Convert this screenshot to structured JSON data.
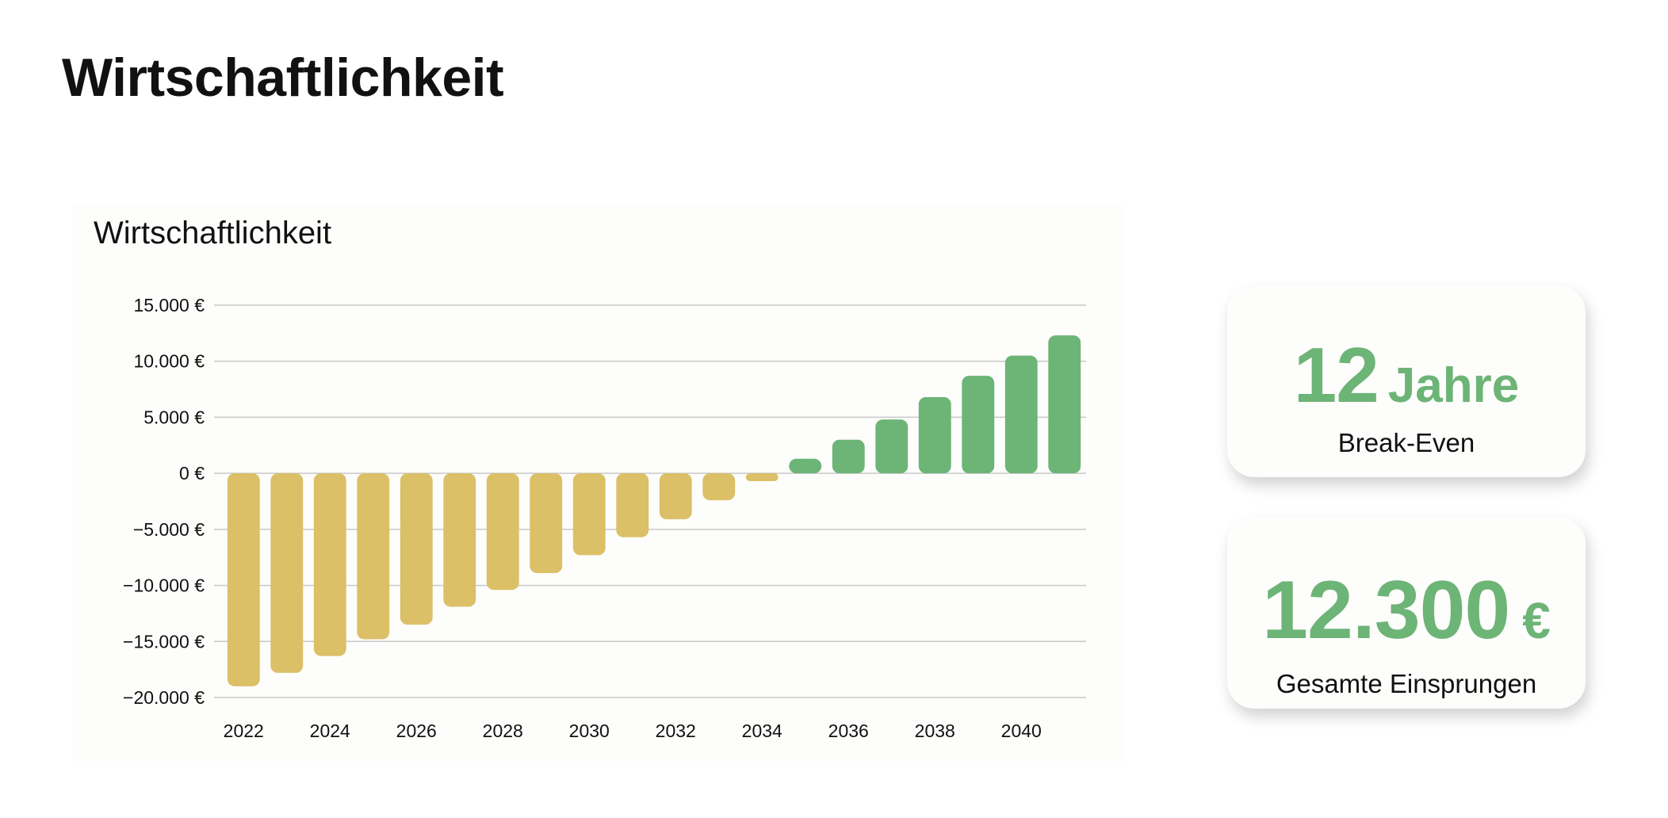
{
  "page": {
    "title": "Wirtschaftlichkeit"
  },
  "cards": [
    {
      "value": "12",
      "unit": "Jahre",
      "caption": "Break-Even"
    },
    {
      "value": "12.300",
      "unit": "€",
      "caption": "Gesamte Einsprungen"
    }
  ],
  "colors": {
    "negative": "#dbc068",
    "positive": "#6db477",
    "grid": "#c8c8c8"
  },
  "chart_data": {
    "type": "bar",
    "title": "Wirtschaftlichkeit",
    "xlabel": "",
    "ylabel": "",
    "x": [
      2022,
      2023,
      2024,
      2025,
      2026,
      2027,
      2028,
      2029,
      2030,
      2031,
      2032,
      2033,
      2034,
      2035,
      2036,
      2037,
      2038,
      2039,
      2040,
      2041
    ],
    "values": [
      -19000,
      -17800,
      -16300,
      -14800,
      -13500,
      -11900,
      -10400,
      -8900,
      -7300,
      -5700,
      -4100,
      -2400,
      -700,
      1300,
      3000,
      4800,
      6800,
      8700,
      10500,
      12300
    ],
    "ylim": [
      -20000,
      15000
    ],
    "yticks": [
      15000,
      10000,
      5000,
      0,
      -5000,
      -10000,
      -15000,
      -20000
    ],
    "ytick_labels": [
      "15.000 €",
      "10.000 €",
      "5.000 €",
      "0 €",
      "−5.000 €",
      "−10.000 €",
      "−15.000 €",
      "−20.000 €"
    ],
    "xtick_labels": [
      "2022",
      "2024",
      "2026",
      "2028",
      "2030",
      "2032",
      "2034",
      "2036",
      "2038",
      "2040"
    ],
    "grid": true,
    "legend": "none"
  }
}
